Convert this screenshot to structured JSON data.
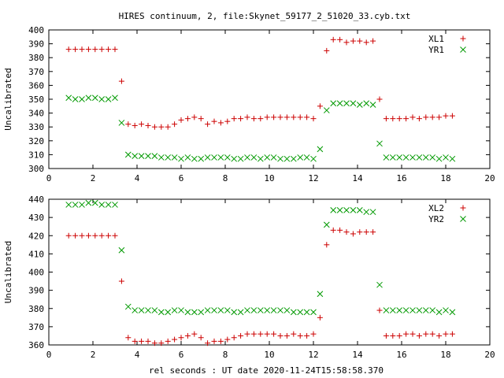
{
  "page": {
    "title": "HIRES continuum, 2, file:Skynet_59177_2_51020_33.cyb.txt",
    "xlabel": "rel seconds : UT date 2020-11-24T15:58:58.370"
  },
  "colors": {
    "XL": "#cc0000",
    "YR": "#009900"
  },
  "chart_data": [
    {
      "type": "scatter",
      "ylabel": "Uncalibrated",
      "xlim": [
        0,
        20
      ],
      "ylim": [
        300,
        400
      ],
      "x_ticks": [
        "0",
        "2",
        "4",
        "6",
        "8",
        "10",
        "12",
        "14",
        "16",
        "18",
        "20"
      ],
      "y_ticks": [
        "300",
        "310",
        "320",
        "330",
        "340",
        "350",
        "360",
        "370",
        "380",
        "390",
        "400"
      ],
      "legend_position": "top-right",
      "grid": false,
      "series": [
        {
          "name": "XL1",
          "marker": "plus",
          "color": "#cc0000",
          "x": [
            0.9,
            1.2,
            1.5,
            1.8,
            2.1,
            2.4,
            2.7,
            3.0,
            3.3,
            3.6,
            3.9,
            4.2,
            4.5,
            4.8,
            5.1,
            5.4,
            5.7,
            6.0,
            6.3,
            6.6,
            6.9,
            7.2,
            7.5,
            7.8,
            8.1,
            8.4,
            8.7,
            9.0,
            9.3,
            9.6,
            9.9,
            10.2,
            10.5,
            10.8,
            11.1,
            11.4,
            11.7,
            12.0,
            12.3,
            12.6,
            12.9,
            13.2,
            13.5,
            13.8,
            14.1,
            14.4,
            14.7,
            15.0,
            15.3,
            15.6,
            15.9,
            16.2,
            16.5,
            16.8,
            17.1,
            17.4,
            17.7,
            18.0,
            18.3
          ],
          "y": [
            386,
            386,
            386,
            386,
            386,
            386,
            386,
            386,
            363,
            332,
            331,
            332,
            331,
            330,
            330,
            330,
            332,
            335,
            336,
            337,
            336,
            332,
            334,
            333,
            334,
            336,
            336,
            337,
            336,
            336,
            337,
            337,
            337,
            337,
            337,
            337,
            337,
            336,
            345,
            385,
            393,
            393,
            391,
            392,
            392,
            391,
            392,
            350,
            336,
            336,
            336,
            336,
            337,
            336,
            337,
            337,
            337,
            338,
            338
          ]
        },
        {
          "name": "YR1",
          "marker": "cross",
          "color": "#009900",
          "x": [
            0.9,
            1.2,
            1.5,
            1.8,
            2.1,
            2.4,
            2.7,
            3.0,
            3.3,
            3.6,
            3.9,
            4.2,
            4.5,
            4.8,
            5.1,
            5.4,
            5.7,
            6.0,
            6.3,
            6.6,
            6.9,
            7.2,
            7.5,
            7.8,
            8.1,
            8.4,
            8.7,
            9.0,
            9.3,
            9.6,
            9.9,
            10.2,
            10.5,
            10.8,
            11.1,
            11.4,
            11.7,
            12.0,
            12.3,
            12.6,
            12.9,
            13.2,
            13.5,
            13.8,
            14.1,
            14.4,
            14.7,
            15.0,
            15.3,
            15.6,
            15.9,
            16.2,
            16.5,
            16.8,
            17.1,
            17.4,
            17.7,
            18.0,
            18.3
          ],
          "y": [
            351,
            350,
            350,
            351,
            351,
            350,
            350,
            351,
            333,
            310,
            309,
            309,
            309,
            309,
            308,
            308,
            308,
            307,
            308,
            307,
            307,
            308,
            308,
            308,
            308,
            307,
            307,
            308,
            308,
            307,
            308,
            308,
            307,
            307,
            307,
            308,
            308,
            307,
            314,
            342,
            347,
            347,
            347,
            347,
            346,
            347,
            346,
            318,
            308,
            308,
            308,
            308,
            308,
            308,
            308,
            308,
            307,
            308,
            307
          ]
        }
      ]
    },
    {
      "type": "scatter",
      "ylabel": "Uncalibrated",
      "xlim": [
        0,
        20
      ],
      "ylim": [
        360,
        440
      ],
      "x_ticks": [
        "0",
        "2",
        "4",
        "6",
        "8",
        "10",
        "12",
        "14",
        "16",
        "18",
        "20"
      ],
      "y_ticks": [
        "360",
        "370",
        "380",
        "390",
        "400",
        "410",
        "420",
        "430",
        "440"
      ],
      "legend_position": "top-right",
      "grid": false,
      "series": [
        {
          "name": "XL2",
          "marker": "plus",
          "color": "#cc0000",
          "x": [
            0.9,
            1.2,
            1.5,
            1.8,
            2.1,
            2.4,
            2.7,
            3.0,
            3.3,
            3.6,
            3.9,
            4.2,
            4.5,
            4.8,
            5.1,
            5.4,
            5.7,
            6.0,
            6.3,
            6.6,
            6.9,
            7.2,
            7.5,
            7.8,
            8.1,
            8.4,
            8.7,
            9.0,
            9.3,
            9.6,
            9.9,
            10.2,
            10.5,
            10.8,
            11.1,
            11.4,
            11.7,
            12.0,
            12.3,
            12.6,
            12.9,
            13.2,
            13.5,
            13.8,
            14.1,
            14.4,
            14.7,
            15.0,
            15.3,
            15.6,
            15.9,
            16.2,
            16.5,
            16.8,
            17.1,
            17.4,
            17.7,
            18.0,
            18.3
          ],
          "y": [
            420,
            420,
            420,
            420,
            420,
            420,
            420,
            420,
            395,
            364,
            362,
            362,
            362,
            361,
            361,
            362,
            363,
            364,
            365,
            366,
            364,
            361,
            362,
            362,
            363,
            364,
            365,
            366,
            366,
            366,
            366,
            366,
            365,
            365,
            366,
            365,
            365,
            366,
            375,
            415,
            423,
            423,
            422,
            421,
            422,
            422,
            422,
            379,
            365,
            365,
            365,
            366,
            366,
            365,
            366,
            366,
            365,
            366,
            366
          ]
        },
        {
          "name": "YR2",
          "marker": "cross",
          "color": "#009900",
          "x": [
            0.9,
            1.2,
            1.5,
            1.8,
            2.1,
            2.4,
            2.7,
            3.0,
            3.3,
            3.6,
            3.9,
            4.2,
            4.5,
            4.8,
            5.1,
            5.4,
            5.7,
            6.0,
            6.3,
            6.6,
            6.9,
            7.2,
            7.5,
            7.8,
            8.1,
            8.4,
            8.7,
            9.0,
            9.3,
            9.6,
            9.9,
            10.2,
            10.5,
            10.8,
            11.1,
            11.4,
            11.7,
            12.0,
            12.3,
            12.6,
            12.9,
            13.2,
            13.5,
            13.8,
            14.1,
            14.4,
            14.7,
            15.0,
            15.3,
            15.6,
            15.9,
            16.2,
            16.5,
            16.8,
            17.1,
            17.4,
            17.7,
            18.0,
            18.3
          ],
          "y": [
            437,
            437,
            437,
            438,
            438,
            437,
            437,
            437,
            412,
            381,
            379,
            379,
            379,
            379,
            378,
            378,
            379,
            379,
            378,
            378,
            378,
            379,
            379,
            379,
            379,
            378,
            378,
            379,
            379,
            379,
            379,
            379,
            379,
            379,
            378,
            378,
            378,
            378,
            388,
            426,
            434,
            434,
            434,
            434,
            434,
            433,
            433,
            393,
            379,
            379,
            379,
            379,
            379,
            379,
            379,
            379,
            378,
            379,
            378
          ]
        }
      ]
    }
  ]
}
